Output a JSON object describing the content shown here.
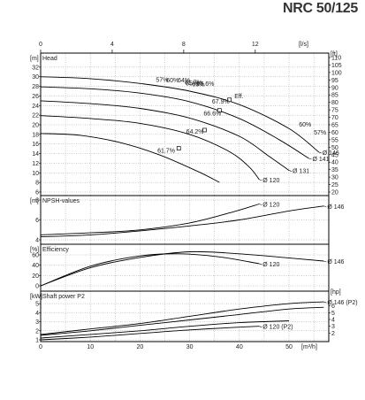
{
  "page": {
    "model": "NRC 50/125"
  },
  "chart_data": {
    "type": "line",
    "x_axes": {
      "top": {
        "unit": "[l/s]",
        "range": [
          0,
          16
        ],
        "ticks": [
          0,
          4,
          8,
          12
        ]
      },
      "bottom": {
        "unit": "[m³/h]",
        "range": [
          0,
          58
        ],
        "ticks": [
          0,
          10,
          20,
          30,
          40,
          50
        ]
      }
    },
    "panels": [
      {
        "id": "head",
        "label": "Head",
        "ylabel": "[m]",
        "ylim": [
          6,
          34
        ],
        "yticks": [
          6,
          8,
          10,
          12,
          14,
          16,
          18,
          20,
          22,
          24,
          26,
          28,
          30,
          32
        ],
        "right_axis": {
          "unit": "[ft]",
          "range": [
            20,
            110
          ],
          "ticks": [
            20,
            25,
            30,
            35,
            40,
            45,
            50,
            55,
            60,
            65,
            70,
            75,
            80,
            85,
            90,
            95,
            100,
            105,
            110
          ]
        },
        "series": [
          {
            "name": "Ø 146",
            "points": [
              [
                0,
                30
              ],
              [
                10,
                29.6
              ],
              [
                20,
                28.6
              ],
              [
                30,
                27
              ],
              [
                40,
                24.2
              ],
              [
                50,
                19.2
              ],
              [
                56,
                14.3
              ]
            ]
          },
          {
            "name": "Ø 141",
            "points": [
              [
                0,
                27.9
              ],
              [
                10,
                27.5
              ],
              [
                20,
                26.6
              ],
              [
                30,
                24.8
              ],
              [
                40,
                21.3
              ],
              [
                48,
                16.9
              ],
              [
                54,
                13
              ]
            ]
          },
          {
            "name": "Ø 131",
            "points": [
              [
                0,
                25
              ],
              [
                10,
                24.4
              ],
              [
                20,
                23.4
              ],
              [
                30,
                21.4
              ],
              [
                40,
                17.6
              ],
              [
                46,
                13.4
              ],
              [
                50,
                10.5
              ]
            ]
          },
          {
            "name": "Ø 120",
            "points": [
              [
                0,
                21.9
              ],
              [
                10,
                21.3
              ],
              [
                20,
                20.3
              ],
              [
                30,
                18
              ],
              [
                38,
                14.4
              ],
              [
                42,
                11.2
              ],
              [
                44,
                8.6
              ]
            ]
          },
          {
            "name": "",
            "points": [
              [
                0,
                18.2
              ],
              [
                8,
                17.8
              ],
              [
                16,
                16.3
              ],
              [
                24,
                13.7
              ],
              [
                32,
                10.1
              ],
              [
                36,
                8
              ]
            ]
          }
        ],
        "efficiency_labels": [
          {
            "text": "57%",
            "x": 23.2,
            "y": 28.9
          },
          {
            "text": "60%",
            "x": 25.3,
            "y": 28.8
          },
          {
            "text": "64%",
            "x": 27.6,
            "y": 28.8
          },
          {
            "text": "61.7%",
            "x": 29,
            "y": 28.4
          },
          {
            "text": "65%",
            "x": 29.2,
            "y": 28.2
          },
          {
            "text": "66%",
            "x": 30.5,
            "y": 28
          },
          {
            "text": "66.6%",
            "x": 31.4,
            "y": 28.1
          },
          {
            "text": "Eff.",
            "x": 39,
            "y": 25.5
          },
          {
            "text": "67.9%",
            "x": 34.5,
            "y": 24.4
          },
          {
            "text": "66.6%",
            "x": 32.8,
            "y": 21.9
          },
          {
            "text": "64.2%",
            "x": 29.3,
            "y": 18.2
          },
          {
            "text": "61.7%",
            "x": 23.5,
            "y": 14.2
          },
          {
            "text": "60%",
            "x": 52,
            "y": 19.6
          },
          {
            "text": "57%",
            "x": 55,
            "y": 18
          }
        ],
        "bep_markers": [
          [
            38,
            25.2
          ],
          [
            36,
            23
          ],
          [
            33,
            18.9
          ],
          [
            27.8,
            15.1
          ]
        ]
      },
      {
        "id": "npsh",
        "label": "NPSH-values",
        "ylabel": "[m]",
        "ylim": [
          4,
          8
        ],
        "yticks": [
          4,
          6,
          8
        ],
        "series": [
          {
            "name": "Ø 120",
            "points": [
              [
                0,
                4.5
              ],
              [
                10,
                4.7
              ],
              [
                20,
                5
              ],
              [
                30,
                5.7
              ],
              [
                38,
                6.7
              ],
              [
                44,
                7.6
              ]
            ]
          },
          {
            "name": "Ø 146",
            "points": [
              [
                0,
                4.3
              ],
              [
                10,
                4.5
              ],
              [
                20,
                4.9
              ],
              [
                30,
                5.4
              ],
              [
                40,
                6
              ],
              [
                50,
                6.9
              ],
              [
                57,
                7.4
              ]
            ]
          }
        ]
      },
      {
        "id": "efficiency",
        "label": "Efficiency",
        "ylabel": "[%]",
        "ylim": [
          0,
          60
        ],
        "yticks": [
          0,
          20,
          40,
          60
        ],
        "series": [
          {
            "name": "Ø 146",
            "points": [
              [
                0,
                0
              ],
              [
                10,
                35
              ],
              [
                20,
                55
              ],
              [
                30,
                66
              ],
              [
                40,
                62
              ],
              [
                50,
                54
              ],
              [
                57,
                48
              ]
            ]
          },
          {
            "name": "Ø 120",
            "points": [
              [
                0,
                0
              ],
              [
                10,
                38
              ],
              [
                20,
                58
              ],
              [
                28,
                62
              ],
              [
                36,
                56
              ],
              [
                44,
                43
              ]
            ]
          }
        ]
      },
      {
        "id": "power",
        "label": "Shaft power P2",
        "ylabel": "[kW]",
        "ylim": [
          1,
          5.5
        ],
        "yticks": [
          1,
          2,
          3,
          4,
          5
        ],
        "right_axis": {
          "unit": "[hp]",
          "range": [
            1,
            7
          ],
          "ticks": [
            2,
            3,
            4,
            5,
            6
          ]
        },
        "series": [
          {
            "name": "Ø 146 (P2)",
            "points": [
              [
                0,
                1.6
              ],
              [
                10,
                2.2
              ],
              [
                20,
                2.8
              ],
              [
                30,
                3.6
              ],
              [
                40,
                4.4
              ],
              [
                50,
                5
              ],
              [
                57,
                5.2
              ]
            ]
          },
          {
            "name": "",
            "points": [
              [
                0,
                1.5
              ],
              [
                10,
                2
              ],
              [
                20,
                2.6
              ],
              [
                30,
                3.2
              ],
              [
                40,
                3.8
              ],
              [
                50,
                4.4
              ],
              [
                57,
                4.6
              ]
            ]
          },
          {
            "name": "",
            "points": [
              [
                0,
                1.2
              ],
              [
                10,
                1.6
              ],
              [
                20,
                2
              ],
              [
                30,
                2.5
              ],
              [
                40,
                2.9
              ],
              [
                50,
                3.1
              ]
            ]
          },
          {
            "name": "Ø 120 (P2)",
            "points": [
              [
                0,
                1
              ],
              [
                10,
                1.3
              ],
              [
                20,
                1.7
              ],
              [
                30,
                2.1
              ],
              [
                40,
                2.4
              ],
              [
                44,
                2.5
              ]
            ]
          }
        ]
      }
    ],
    "grid": true,
    "colors": {
      "line": "#000000",
      "grid": "#9a9a9a",
      "frame": "#000000"
    }
  }
}
